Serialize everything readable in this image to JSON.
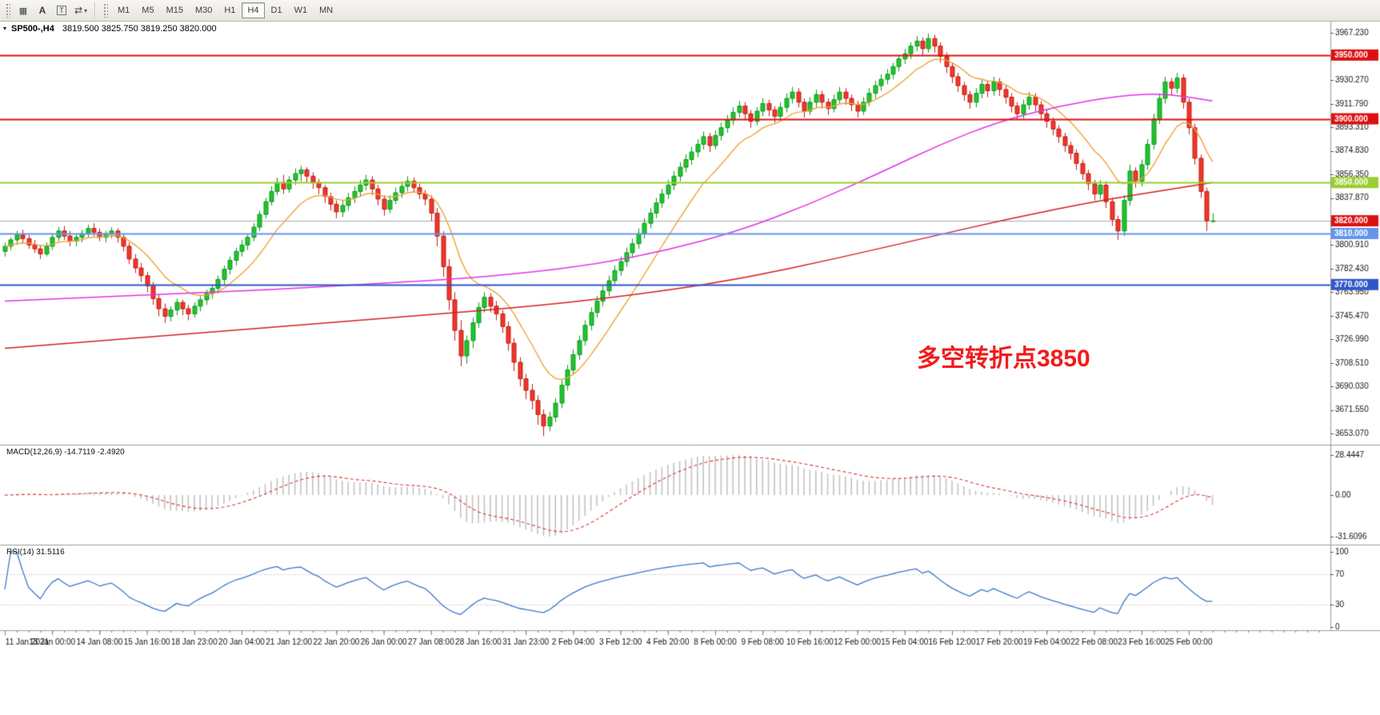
{
  "toolbar": {
    "tool_icons": [
      {
        "name": "charts-grid-icon",
        "glyph": "▦"
      },
      {
        "name": "text-label-icon",
        "glyph": "A"
      },
      {
        "name": "text-frame-icon",
        "glyph": "T"
      },
      {
        "name": "cycle-arrows-icon",
        "glyph": "⇄"
      },
      {
        "name": "dropdown-caret-icon",
        "glyph": "▾"
      }
    ],
    "timeframes": [
      {
        "label": "M1"
      },
      {
        "label": "M5"
      },
      {
        "label": "M15"
      },
      {
        "label": "M30"
      },
      {
        "label": "H1"
      },
      {
        "label": "H4"
      },
      {
        "label": "D1"
      },
      {
        "label": "W1"
      },
      {
        "label": "MN"
      }
    ],
    "active_timeframe": "H4"
  },
  "chart_header": {
    "marker_glyph": "▾",
    "symbol_period": "SP500-,H4",
    "ohlc": "3819.500 3825.750 3819.250 3820.000"
  },
  "indicators": {
    "macd": {
      "label": "MACD(12,26,9) -14.7119 -2.4920",
      "scale_max": "28.4447",
      "scale_zero": "0.00",
      "scale_min": "-31.6096"
    },
    "rsi": {
      "label": "RSI(14) 31.5116",
      "scale": [
        "100",
        "70",
        "30",
        "0"
      ],
      "levels": [
        70,
        30
      ]
    }
  },
  "annotation": {
    "text": "多空转折点3850",
    "color": "#f21a1a"
  },
  "chart_data": {
    "type": "candlestick",
    "symbol": "SP500-",
    "timeframe": "H4",
    "ylim": [
      3645,
      3975
    ],
    "price_ticks": [
      3967.23,
      3948.75,
      3930.27,
      3911.79,
      3893.31,
      3874.83,
      3856.35,
      3837.87,
      3819.39,
      3800.91,
      3782.43,
      3763.95,
      3745.47,
      3726.99,
      3708.51,
      3690.03,
      3671.55,
      3653.07
    ],
    "time_labels": [
      "11 Jan 2021",
      "13 Jan 00:00",
      "14 Jan 08:00",
      "15 Jan 16:00",
      "18 Jan 23:00",
      "20 Jan 04:00",
      "21 Jan 12:00",
      "22 Jan 20:00",
      "26 Jan 00:00",
      "27 Jan 08:00",
      "28 Jan 16:00",
      "31 Jan 23:00",
      "2 Feb 04:00",
      "3 Feb 12:00",
      "4 Feb 20:00",
      "8 Feb 00:00",
      "9 Feb 08:00",
      "10 Feb 16:00",
      "12 Feb 00:00",
      "15 Feb 04:00",
      "16 Feb 12:00",
      "17 Feb 20:00",
      "19 Feb 04:00",
      "22 Feb 08:00",
      "23 Feb 16:00",
      "25 Feb 00:00"
    ],
    "levels": [
      {
        "price": 3950,
        "label": "3950.000",
        "color": "#dd1010",
        "width": 2
      },
      {
        "price": 3900,
        "label": "3900.000",
        "color": "#dd1010",
        "width": 2
      },
      {
        "price": 3850,
        "label": "3850.000",
        "color": "#9acd32",
        "width": 2
      },
      {
        "price": 3810,
        "label": "3810.000",
        "color": "#6495ed",
        "width": 2
      },
      {
        "price": 3770,
        "label": "3770.000",
        "color": "#3056c8",
        "width": 2
      }
    ],
    "current_price": {
      "price": 3820,
      "label": "3820.000",
      "line_color": "#ababab",
      "badge": "#dd1010"
    },
    "ma_orange_period": 12,
    "ma_red": [
      [
        0,
        3720
      ],
      [
        30,
        3731
      ],
      [
        60,
        3742
      ],
      [
        90,
        3753
      ],
      [
        110,
        3764
      ],
      [
        125,
        3775
      ],
      [
        140,
        3790
      ],
      [
        155,
        3806
      ],
      [
        170,
        3822
      ],
      [
        185,
        3836
      ],
      [
        196,
        3844
      ],
      [
        204,
        3850
      ]
    ],
    "ma_magenta": [
      [
        0,
        3757
      ],
      [
        15,
        3760
      ],
      [
        30,
        3763
      ],
      [
        45,
        3766
      ],
      [
        60,
        3770
      ],
      [
        75,
        3774
      ],
      [
        88,
        3779
      ],
      [
        100,
        3786
      ],
      [
        112,
        3797
      ],
      [
        124,
        3812
      ],
      [
        136,
        3833
      ],
      [
        148,
        3858
      ],
      [
        158,
        3880
      ],
      [
        168,
        3898
      ],
      [
        178,
        3910
      ],
      [
        188,
        3918
      ],
      [
        196,
        3920
      ],
      [
        204,
        3914
      ]
    ],
    "colors": {
      "up": "#22c32e",
      "up_border": "#0d9a1c",
      "down": "#f1352b",
      "down_border": "#bf2015",
      "ma_red": "#d42020",
      "ma_magenta": "#e332e3",
      "ma_orange": "#efa338",
      "macd_hist": "#c2c2c2",
      "macd_signal": "#e03030",
      "rsi": "#3c78c8"
    },
    "candles": [
      [
        3796,
        3803,
        3792,
        3800
      ],
      [
        3800,
        3807,
        3797,
        3805
      ],
      [
        3805,
        3812,
        3801,
        3809
      ],
      [
        3809,
        3813,
        3803,
        3806
      ],
      [
        3806,
        3809,
        3798,
        3801
      ],
      [
        3801,
        3805,
        3795,
        3798
      ],
      [
        3798,
        3801,
        3790,
        3794
      ],
      [
        3794,
        3803,
        3792,
        3800
      ],
      [
        3800,
        3810,
        3797,
        3807
      ],
      [
        3807,
        3815,
        3804,
        3812
      ],
      [
        3812,
        3816,
        3805,
        3808
      ],
      [
        3808,
        3812,
        3800,
        3804
      ],
      [
        3804,
        3810,
        3800,
        3807
      ],
      [
        3807,
        3813,
        3803,
        3810
      ],
      [
        3810,
        3817,
        3807,
        3814
      ],
      [
        3814,
        3818,
        3808,
        3811
      ],
      [
        3811,
        3814,
        3804,
        3807
      ],
      [
        3807,
        3812,
        3803,
        3810
      ],
      [
        3810,
        3815,
        3806,
        3812
      ],
      [
        3812,
        3814,
        3803,
        3807
      ],
      [
        3807,
        3810,
        3796,
        3800
      ],
      [
        3800,
        3803,
        3786,
        3790
      ],
      [
        3790,
        3794,
        3779,
        3783
      ],
      [
        3783,
        3787,
        3772,
        3777
      ],
      [
        3777,
        3780,
        3764,
        3769
      ],
      [
        3769,
        3772,
        3754,
        3759
      ],
      [
        3759,
        3762,
        3745,
        3751
      ],
      [
        3751,
        3755,
        3740,
        3745
      ],
      [
        3745,
        3753,
        3741,
        3750
      ],
      [
        3750,
        3759,
        3746,
        3756
      ],
      [
        3756,
        3758,
        3746,
        3751
      ],
      [
        3751,
        3754,
        3742,
        3747
      ],
      [
        3747,
        3756,
        3744,
        3753
      ],
      [
        3753,
        3761,
        3749,
        3758
      ],
      [
        3758,
        3766,
        3754,
        3763
      ],
      [
        3763,
        3770,
        3759,
        3767
      ],
      [
        3767,
        3777,
        3763,
        3774
      ],
      [
        3774,
        3785,
        3770,
        3782
      ],
      [
        3782,
        3792,
        3778,
        3789
      ],
      [
        3789,
        3799,
        3785,
        3796
      ],
      [
        3796,
        3805,
        3792,
        3801
      ],
      [
        3801,
        3810,
        3797,
        3807
      ],
      [
        3807,
        3818,
        3804,
        3815
      ],
      [
        3815,
        3828,
        3812,
        3825
      ],
      [
        3825,
        3838,
        3822,
        3835
      ],
      [
        3835,
        3847,
        3832,
        3843
      ],
      [
        3843,
        3854,
        3840,
        3850
      ],
      [
        3850,
        3856,
        3841,
        3845
      ],
      [
        3845,
        3855,
        3842,
        3852
      ],
      [
        3852,
        3861,
        3848,
        3857
      ],
      [
        3857,
        3863,
        3851,
        3860
      ],
      [
        3860,
        3862,
        3850,
        3855
      ],
      [
        3855,
        3858,
        3845,
        3850
      ],
      [
        3850,
        3853,
        3841,
        3846
      ],
      [
        3846,
        3848,
        3834,
        3839
      ],
      [
        3839,
        3842,
        3828,
        3833
      ],
      [
        3833,
        3836,
        3822,
        3827
      ],
      [
        3827,
        3836,
        3823,
        3832
      ],
      [
        3832,
        3842,
        3828,
        3838
      ],
      [
        3838,
        3847,
        3834,
        3843
      ],
      [
        3843,
        3852,
        3839,
        3848
      ],
      [
        3848,
        3856,
        3844,
        3852
      ],
      [
        3852,
        3855,
        3840,
        3845
      ],
      [
        3845,
        3848,
        3832,
        3837
      ],
      [
        3837,
        3840,
        3824,
        3829
      ],
      [
        3829,
        3840,
        3826,
        3836
      ],
      [
        3836,
        3846,
        3833,
        3842
      ],
      [
        3842,
        3851,
        3838,
        3847
      ],
      [
        3847,
        3855,
        3843,
        3851
      ],
      [
        3851,
        3854,
        3842,
        3846
      ],
      [
        3846,
        3849,
        3837,
        3841
      ],
      [
        3841,
        3844,
        3832,
        3837
      ],
      [
        3837,
        3840,
        3820,
        3826
      ],
      [
        3826,
        3830,
        3800,
        3808
      ],
      [
        3808,
        3812,
        3776,
        3784
      ],
      [
        3784,
        3790,
        3750,
        3758
      ],
      [
        3758,
        3764,
        3726,
        3734
      ],
      [
        3734,
        3742,
        3706,
        3714
      ],
      [
        3714,
        3730,
        3708,
        3726
      ],
      [
        3726,
        3744,
        3720,
        3740
      ],
      [
        3740,
        3756,
        3736,
        3752
      ],
      [
        3752,
        3764,
        3748,
        3760
      ],
      [
        3760,
        3763,
        3748,
        3753
      ],
      [
        3753,
        3757,
        3742,
        3747
      ],
      [
        3747,
        3750,
        3732,
        3737
      ],
      [
        3737,
        3741,
        3718,
        3724
      ],
      [
        3724,
        3728,
        3702,
        3709
      ],
      [
        3709,
        3713,
        3690,
        3696
      ],
      [
        3696,
        3700,
        3680,
        3687
      ],
      [
        3687,
        3692,
        3672,
        3679
      ],
      [
        3679,
        3683,
        3660,
        3668
      ],
      [
        3668,
        3672,
        3651,
        3659
      ],
      [
        3659,
        3670,
        3655,
        3666
      ],
      [
        3666,
        3681,
        3662,
        3677
      ],
      [
        3677,
        3695,
        3673,
        3691
      ],
      [
        3691,
        3707,
        3687,
        3703
      ],
      [
        3703,
        3719,
        3699,
        3715
      ],
      [
        3715,
        3730,
        3711,
        3726
      ],
      [
        3726,
        3742,
        3722,
        3738
      ],
      [
        3738,
        3752,
        3734,
        3748
      ],
      [
        3748,
        3761,
        3744,
        3757
      ],
      [
        3757,
        3769,
        3753,
        3765
      ],
      [
        3765,
        3777,
        3761,
        3773
      ],
      [
        3773,
        3785,
        3769,
        3781
      ],
      [
        3781,
        3792,
        3777,
        3788
      ],
      [
        3788,
        3799,
        3784,
        3795
      ],
      [
        3795,
        3806,
        3791,
        3802
      ],
      [
        3802,
        3814,
        3798,
        3810
      ],
      [
        3810,
        3822,
        3806,
        3818
      ],
      [
        3818,
        3830,
        3814,
        3826
      ],
      [
        3826,
        3838,
        3822,
        3834
      ],
      [
        3834,
        3845,
        3830,
        3841
      ],
      [
        3841,
        3852,
        3837,
        3848
      ],
      [
        3848,
        3859,
        3844,
        3855
      ],
      [
        3855,
        3866,
        3851,
        3862
      ],
      [
        3862,
        3872,
        3858,
        3868
      ],
      [
        3868,
        3878,
        3864,
        3874
      ],
      [
        3874,
        3884,
        3870,
        3880
      ],
      [
        3880,
        3890,
        3876,
        3886
      ],
      [
        3886,
        3889,
        3874,
        3879
      ],
      [
        3879,
        3891,
        3876,
        3887
      ],
      [
        3887,
        3897,
        3883,
        3893
      ],
      [
        3893,
        3903,
        3889,
        3899
      ],
      [
        3899,
        3909,
        3895,
        3905
      ],
      [
        3905,
        3914,
        3901,
        3910
      ],
      [
        3910,
        3913,
        3899,
        3904
      ],
      [
        3904,
        3907,
        3893,
        3898
      ],
      [
        3898,
        3909,
        3895,
        3906
      ],
      [
        3906,
        3916,
        3902,
        3912
      ],
      [
        3912,
        3915,
        3902,
        3907
      ],
      [
        3907,
        3910,
        3897,
        3902
      ],
      [
        3902,
        3913,
        3899,
        3909
      ],
      [
        3909,
        3920,
        3905,
        3916
      ],
      [
        3916,
        3925,
        3912,
        3921
      ],
      [
        3921,
        3924,
        3909,
        3913
      ],
      [
        3913,
        3916,
        3901,
        3906
      ],
      [
        3906,
        3917,
        3903,
        3913
      ],
      [
        3913,
        3923,
        3909,
        3919
      ],
      [
        3919,
        3922,
        3908,
        3913
      ],
      [
        3913,
        3916,
        3903,
        3908
      ],
      [
        3908,
        3919,
        3905,
        3915
      ],
      [
        3915,
        3925,
        3911,
        3921
      ],
      [
        3921,
        3924,
        3911,
        3916
      ],
      [
        3916,
        3919,
        3906,
        3911
      ],
      [
        3911,
        3914,
        3901,
        3906
      ],
      [
        3906,
        3917,
        3903,
        3913
      ],
      [
        3913,
        3924,
        3910,
        3920
      ],
      [
        3920,
        3930,
        3916,
        3926
      ],
      [
        3926,
        3935,
        3922,
        3931
      ],
      [
        3931,
        3939,
        3927,
        3935
      ],
      [
        3935,
        3944,
        3931,
        3941
      ],
      [
        3941,
        3950,
        3937,
        3947
      ],
      [
        3947,
        3955,
        3943,
        3951
      ],
      [
        3951,
        3960,
        3947,
        3957
      ],
      [
        3957,
        3965,
        3953,
        3961
      ],
      [
        3961,
        3964,
        3950,
        3955
      ],
      [
        3955,
        3967,
        3952,
        3963
      ],
      [
        3963,
        3966,
        3952,
        3957
      ],
      [
        3957,
        3960,
        3944,
        3949
      ],
      [
        3949,
        3952,
        3936,
        3941
      ],
      [
        3941,
        3944,
        3928,
        3933
      ],
      [
        3933,
        3936,
        3921,
        3926
      ],
      [
        3926,
        3929,
        3914,
        3919
      ],
      [
        3919,
        3922,
        3908,
        3913
      ],
      [
        3913,
        3924,
        3909,
        3920
      ],
      [
        3920,
        3931,
        3916,
        3927
      ],
      [
        3927,
        3930,
        3917,
        3922
      ],
      [
        3922,
        3933,
        3918,
        3929
      ],
      [
        3929,
        3932,
        3918,
        3923
      ],
      [
        3923,
        3926,
        3912,
        3917
      ],
      [
        3917,
        3920,
        3905,
        3910
      ],
      [
        3910,
        3913,
        3899,
        3904
      ],
      [
        3904,
        3915,
        3900,
        3911
      ],
      [
        3911,
        3921,
        3907,
        3917
      ],
      [
        3917,
        3920,
        3906,
        3911
      ],
      [
        3911,
        3914,
        3899,
        3904
      ],
      [
        3904,
        3907,
        3893,
        3898
      ],
      [
        3898,
        3901,
        3887,
        3892
      ],
      [
        3892,
        3895,
        3881,
        3886
      ],
      [
        3886,
        3889,
        3874,
        3879
      ],
      [
        3879,
        3882,
        3868,
        3873
      ],
      [
        3873,
        3876,
        3860,
        3865
      ],
      [
        3865,
        3868,
        3852,
        3857
      ],
      [
        3857,
        3860,
        3844,
        3849
      ],
      [
        3849,
        3852,
        3836,
        3841
      ],
      [
        3841,
        3852,
        3837,
        3848
      ],
      [
        3848,
        3851,
        3830,
        3835
      ],
      [
        3835,
        3838,
        3816,
        3821
      ],
      [
        3821,
        3824,
        3805,
        3812
      ],
      [
        3812,
        3840,
        3808,
        3836
      ],
      [
        3836,
        3864,
        3832,
        3859
      ],
      [
        3859,
        3862,
        3846,
        3851
      ],
      [
        3851,
        3868,
        3847,
        3864
      ],
      [
        3864,
        3884,
        3860,
        3880
      ],
      [
        3880,
        3904,
        3876,
        3900
      ],
      [
        3900,
        3920,
        3896,
        3916
      ],
      [
        3916,
        3933,
        3912,
        3929
      ],
      [
        3929,
        3932,
        3918,
        3924
      ],
      [
        3924,
        3936,
        3920,
        3932
      ],
      [
        3932,
        3935,
        3908,
        3913
      ],
      [
        3913,
        3916,
        3888,
        3893
      ],
      [
        3893,
        3896,
        3864,
        3869
      ],
      [
        3869,
        3872,
        3838,
        3843
      ],
      [
        3843,
        3846,
        3812,
        3820
      ],
      [
        3819.5,
        3825.75,
        3819.25,
        3820
      ]
    ]
  }
}
